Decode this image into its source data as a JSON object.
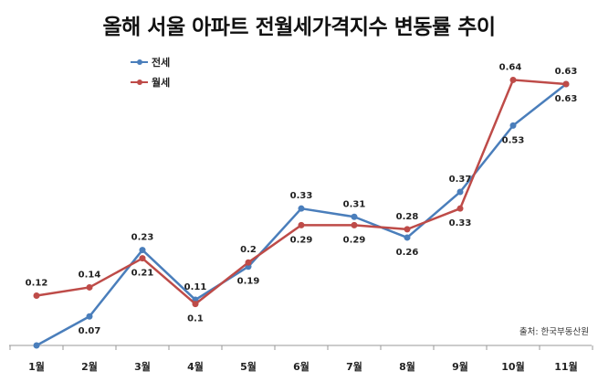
{
  "chart_data": {
    "type": "line",
    "title": "올해 서울 아파트 전월세가격지수 변동률 추이",
    "categories": [
      "1월",
      "2월",
      "3월",
      "4월",
      "5월",
      "6월",
      "7월",
      "8월",
      "9월",
      "10월",
      "11월"
    ],
    "series": [
      {
        "name": "전세",
        "color": "#4a7ebb",
        "values": [
          0,
          0.07,
          0.23,
          0.11,
          0.19,
          0.33,
          0.31,
          0.26,
          0.37,
          0.53,
          0.63
        ],
        "labels": [
          null,
          "0.07",
          "0.23",
          "0.11",
          "0.19",
          "0.33",
          "0.31",
          "0.26",
          "0.37",
          "0.53",
          "0.63"
        ]
      },
      {
        "name": "월세",
        "color": "#be4b48",
        "values": [
          0.12,
          0.14,
          0.21,
          0.1,
          0.2,
          0.29,
          0.29,
          0.28,
          0.33,
          0.64,
          0.63
        ],
        "labels": [
          "0.12",
          "0.14",
          "0.21",
          "0.1",
          "0.2",
          "0.29",
          "0.29",
          "0.28",
          "0.33",
          "0.64",
          "0.63"
        ]
      }
    ],
    "xlabel": "",
    "ylabel": "",
    "ylim": [
      0,
      0.7
    ],
    "grid": false,
    "legend": "top-left",
    "source": "출처: 한국부동산원"
  }
}
